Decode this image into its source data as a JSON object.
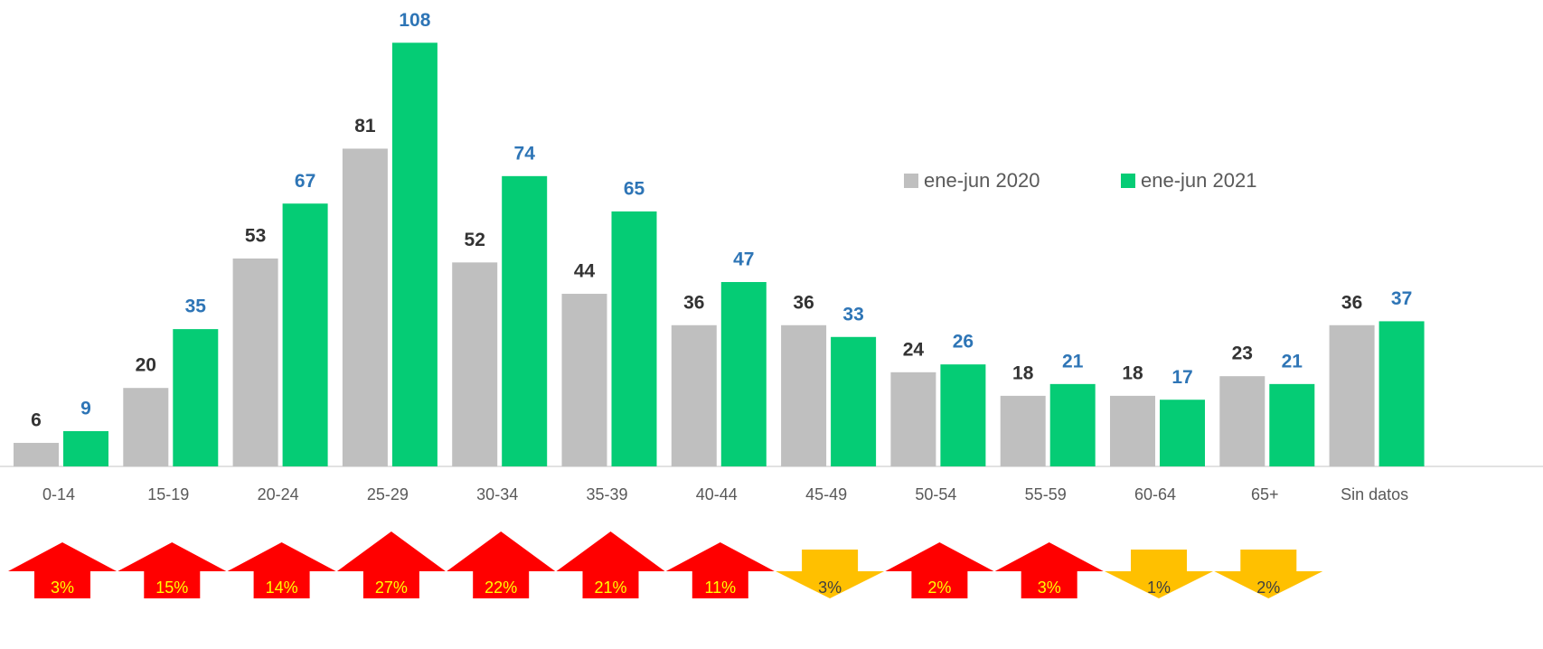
{
  "chart_data": {
    "type": "bar",
    "categories": [
      "0-14",
      "15-19",
      "20-24",
      "25-29",
      "30-34",
      "35-39",
      "40-44",
      "45-49",
      "50-54",
      "55-59",
      "60-64",
      "65+",
      "Sin datos"
    ],
    "series": [
      {
        "name": "ene-jun 2020",
        "color": "#bfbfbf",
        "label_color": "#333333",
        "values": [
          6,
          20,
          53,
          81,
          52,
          44,
          36,
          36,
          24,
          18,
          18,
          23,
          36
        ]
      },
      {
        "name": "ene-jun 2021",
        "color": "#05cc75",
        "label_color": "#2e75b6",
        "values": [
          9,
          35,
          67,
          108,
          74,
          65,
          47,
          33,
          26,
          21,
          17,
          21,
          37
        ]
      }
    ],
    "ylim": [
      0,
      110
    ],
    "legend": "upper right",
    "changes": {
      "values": [
        3,
        15,
        14,
        27,
        22,
        21,
        11,
        3,
        2,
        3,
        1,
        2
      ],
      "value_labels": [
        "3%",
        "15%",
        "14%",
        "27%",
        "22%",
        "21%",
        "11%",
        "3%",
        "2%",
        "3%",
        "1%",
        "2%"
      ],
      "directions": [
        "up",
        "up",
        "up",
        "up",
        "up",
        "up",
        "up",
        "down",
        "up",
        "up",
        "down",
        "down"
      ],
      "up_color": "#ff0000",
      "down_color": "#ffc000"
    }
  }
}
